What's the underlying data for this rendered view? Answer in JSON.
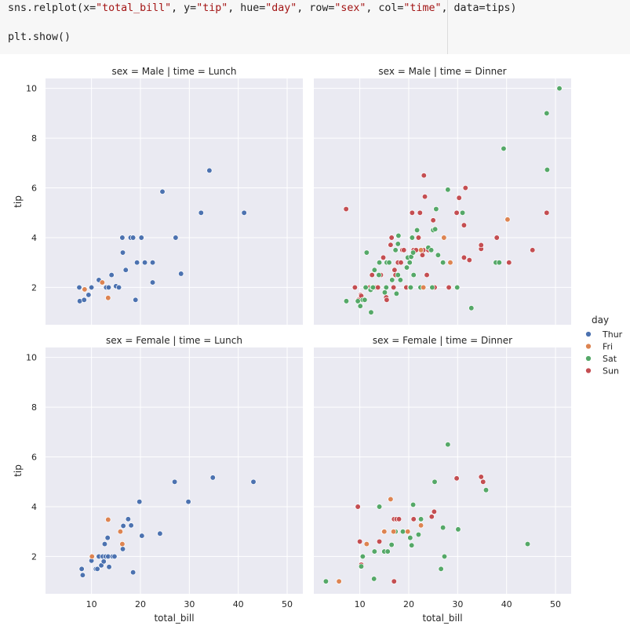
{
  "code": {
    "line1_prefix": "sns.relplot(x=",
    "line1_x": "\"total_bill\"",
    "line1_sep1": ", y=",
    "line1_y": "\"tip\"",
    "line1_sep2": ", hue=",
    "line1_hue": "\"day\"",
    "line1_sep3": ", row=",
    "line1_row": "\"sex\"",
    "line1_sep4": ", col=",
    "line1_col": "\"time\"",
    "line1_suffix": ", data=tips)",
    "line2": "plt.show()"
  },
  "colors": {
    "Thur": "#4c72b0",
    "Fri": "#dd8452",
    "Sat": "#55a868",
    "Sun": "#c44e52",
    "panel_bg": "#eaeaf2",
    "grid": "#ffffff"
  },
  "chart_data": {
    "type": "scatter",
    "grid": true,
    "xlabel": "total_bill",
    "ylabel": "tip",
    "xlim": [
      0.6,
      53.2
    ],
    "ylim": [
      0.5,
      10.4
    ],
    "xticks": [
      10,
      20,
      30,
      40,
      50
    ],
    "yticks": [
      2,
      4,
      6,
      8,
      10
    ],
    "legend": {
      "title": "day",
      "entries": [
        "Thur",
        "Fri",
        "Sat",
        "Sun"
      ],
      "placement": "right"
    },
    "panels": [
      {
        "title": "sex = Male | time = Lunch",
        "points": [
          [
            7.5,
            2.0,
            "Thur"
          ],
          [
            7.6,
            1.45,
            "Thur"
          ],
          [
            8.5,
            1.5,
            "Thur"
          ],
          [
            9.4,
            1.7,
            "Thur"
          ],
          [
            10.0,
            2.0,
            "Thur"
          ],
          [
            11.5,
            2.3,
            "Thur"
          ],
          [
            13.0,
            2.0,
            "Thur"
          ],
          [
            13.5,
            2.0,
            "Thur"
          ],
          [
            14.1,
            2.5,
            "Thur"
          ],
          [
            15.0,
            2.05,
            "Thur"
          ],
          [
            15.6,
            2.0,
            "Thur"
          ],
          [
            16.3,
            4.0,
            "Thur"
          ],
          [
            16.4,
            3.4,
            "Thur"
          ],
          [
            17.0,
            2.7,
            "Thur"
          ],
          [
            18.0,
            4.0,
            "Thur"
          ],
          [
            18.5,
            4.0,
            "Thur"
          ],
          [
            19.0,
            1.5,
            "Thur"
          ],
          [
            19.3,
            3.0,
            "Thur"
          ],
          [
            20.2,
            4.0,
            "Thur"
          ],
          [
            20.9,
            3.0,
            "Thur"
          ],
          [
            22.5,
            3.0,
            "Thur"
          ],
          [
            22.5,
            2.2,
            "Thur"
          ],
          [
            24.5,
            5.85,
            "Thur"
          ],
          [
            27.2,
            4.0,
            "Thur"
          ],
          [
            28.3,
            2.55,
            "Thur"
          ],
          [
            32.4,
            5.0,
            "Thur"
          ],
          [
            34.1,
            6.7,
            "Thur"
          ],
          [
            41.2,
            5.0,
            "Thur"
          ],
          [
            8.6,
            1.92,
            "Fri"
          ],
          [
            12.2,
            2.2,
            "Fri"
          ],
          [
            13.4,
            1.58,
            "Fri"
          ]
        ]
      },
      {
        "title": "sex = Male | time = Dinner",
        "points": [
          [
            7.2,
            5.15,
            "Sun"
          ],
          [
            9.0,
            2.0,
            "Sun"
          ],
          [
            9.7,
            1.5,
            "Sun"
          ],
          [
            10.2,
            1.7,
            "Sun"
          ],
          [
            10.3,
            1.66,
            "Sun"
          ],
          [
            12.0,
            2.0,
            "Sun"
          ],
          [
            12.5,
            2.5,
            "Sun"
          ],
          [
            13.3,
            2.0,
            "Sun"
          ],
          [
            13.7,
            2.0,
            "Sun"
          ],
          [
            14.0,
            3.0,
            "Sun"
          ],
          [
            14.3,
            2.5,
            "Sun"
          ],
          [
            14.8,
            3.2,
            "Sun"
          ],
          [
            15.4,
            1.6,
            "Sun"
          ],
          [
            15.5,
            1.5,
            "Sun"
          ],
          [
            16.3,
            3.71,
            "Sun"
          ],
          [
            16.5,
            4.0,
            "Sun"
          ],
          [
            16.9,
            2.0,
            "Sun"
          ],
          [
            17.1,
            2.7,
            "Sun"
          ],
          [
            17.3,
            2.5,
            "Sun"
          ],
          [
            17.8,
            3.0,
            "Sun"
          ],
          [
            18.4,
            3.0,
            "Sun"
          ],
          [
            18.7,
            3.5,
            "Sun"
          ],
          [
            19.0,
            3.5,
            "Sun"
          ],
          [
            19.5,
            2.0,
            "Sun"
          ],
          [
            20.3,
            2.0,
            "Sun"
          ],
          [
            20.7,
            5.0,
            "Sun"
          ],
          [
            21.0,
            3.5,
            "Sun"
          ],
          [
            21.5,
            3.5,
            "Sun"
          ],
          [
            22.0,
            4.0,
            "Sun"
          ],
          [
            22.3,
            5.0,
            "Sun"
          ],
          [
            22.8,
            3.3,
            "Sun"
          ],
          [
            23.0,
            3.5,
            "Sun"
          ],
          [
            23.1,
            6.5,
            "Sun"
          ],
          [
            23.3,
            5.65,
            "Sun"
          ],
          [
            23.7,
            2.5,
            "Sun"
          ],
          [
            24.0,
            3.5,
            "Sun"
          ],
          [
            25.0,
            4.7,
            "Sun"
          ],
          [
            25.3,
            2.0,
            "Sun"
          ],
          [
            26.9,
            3.0,
            "Sun"
          ],
          [
            28.2,
            2.0,
            "Sun"
          ],
          [
            29.8,
            5.0,
            "Sun"
          ],
          [
            30.3,
            5.6,
            "Sun"
          ],
          [
            31.3,
            4.5,
            "Sun"
          ],
          [
            31.3,
            3.2,
            "Sun"
          ],
          [
            31.6,
            6.0,
            "Sun"
          ],
          [
            32.4,
            3.1,
            "Sun"
          ],
          [
            34.8,
            3.55,
            "Sun"
          ],
          [
            34.8,
            3.7,
            "Sun"
          ],
          [
            38.0,
            4.0,
            "Sun"
          ],
          [
            40.5,
            3.0,
            "Sun"
          ],
          [
            45.3,
            3.5,
            "Sun"
          ],
          [
            48.2,
            5.0,
            "Sun"
          ],
          [
            7.25,
            1.45,
            "Sat"
          ],
          [
            9.6,
            1.45,
            "Sat"
          ],
          [
            10.1,
            1.25,
            "Sat"
          ],
          [
            10.6,
            1.5,
            "Sat"
          ],
          [
            11.0,
            1.5,
            "Sat"
          ],
          [
            11.2,
            2.0,
            "Sat"
          ],
          [
            11.4,
            3.4,
            "Sat"
          ],
          [
            12.2,
            1.9,
            "Sat"
          ],
          [
            12.3,
            1.0,
            "Sat"
          ],
          [
            12.5,
            2.0,
            "Sat"
          ],
          [
            12.7,
            2.0,
            "Sat"
          ],
          [
            13.0,
            2.7,
            "Sat"
          ],
          [
            13.9,
            2.5,
            "Sat"
          ],
          [
            14.0,
            3.0,
            "Sat"
          ],
          [
            15.1,
            1.8,
            "Sat"
          ],
          [
            15.4,
            2.0,
            "Sat"
          ],
          [
            15.5,
            3.0,
            "Sat"
          ],
          [
            16.0,
            3.0,
            "Sat"
          ],
          [
            16.6,
            2.3,
            "Sat"
          ],
          [
            17.3,
            3.5,
            "Sat"
          ],
          [
            17.5,
            1.75,
            "Sat"
          ],
          [
            17.8,
            2.5,
            "Sat"
          ],
          [
            17.8,
            3.75,
            "Sat"
          ],
          [
            17.9,
            4.08,
            "Sat"
          ],
          [
            18.3,
            2.3,
            "Sat"
          ],
          [
            19.6,
            2.8,
            "Sat"
          ],
          [
            19.8,
            3.2,
            "Sat"
          ],
          [
            20.2,
            3.0,
            "Sat"
          ],
          [
            20.4,
            2.0,
            "Sat"
          ],
          [
            20.5,
            3.23,
            "Sat"
          ],
          [
            20.7,
            4.0,
            "Sat"
          ],
          [
            20.9,
            3.4,
            "Sat"
          ],
          [
            21.0,
            2.5,
            "Sat"
          ],
          [
            21.7,
            4.3,
            "Sat"
          ],
          [
            22.4,
            2.0,
            "Sat"
          ],
          [
            24.0,
            3.6,
            "Sat"
          ],
          [
            24.6,
            3.5,
            "Sat"
          ],
          [
            24.8,
            2.0,
            "Sat"
          ],
          [
            25.0,
            4.3,
            "Sat"
          ],
          [
            25.4,
            4.34,
            "Sat"
          ],
          [
            25.6,
            5.15,
            "Sat"
          ],
          [
            26.0,
            3.3,
            "Sat"
          ],
          [
            27.0,
            3.0,
            "Sat"
          ],
          [
            28.0,
            5.93,
            "Sat"
          ],
          [
            29.9,
            2.0,
            "Sat"
          ],
          [
            31.0,
            5.0,
            "Sat"
          ],
          [
            32.8,
            1.17,
            "Sat"
          ],
          [
            37.8,
            3.0,
            "Sat"
          ],
          [
            38.5,
            3.0,
            "Sat"
          ],
          [
            39.4,
            7.58,
            "Sat"
          ],
          [
            48.2,
            9.0,
            "Sat"
          ],
          [
            48.3,
            6.73,
            "Sat"
          ],
          [
            50.8,
            10.0,
            "Sat"
          ],
          [
            22.5,
            3.5,
            "Fri"
          ],
          [
            23.0,
            2.0,
            "Fri"
          ],
          [
            27.2,
            4.0,
            "Fri"
          ],
          [
            28.5,
            3.0,
            "Fri"
          ],
          [
            40.2,
            4.73,
            "Fri"
          ]
        ]
      },
      {
        "title": "sex = Female | time = Lunch",
        "points": [
          [
            8.0,
            1.5,
            "Thur"
          ],
          [
            8.2,
            1.25,
            "Thur"
          ],
          [
            10.0,
            1.83,
            "Thur"
          ],
          [
            10.9,
            1.5,
            "Thur"
          ],
          [
            11.2,
            1.5,
            "Thur"
          ],
          [
            11.5,
            2.0,
            "Thur"
          ],
          [
            12.0,
            1.64,
            "Thur"
          ],
          [
            12.3,
            2.0,
            "Thur"
          ],
          [
            12.5,
            1.8,
            "Thur"
          ],
          [
            12.7,
            2.5,
            "Thur"
          ],
          [
            12.9,
            2.0,
            "Thur"
          ],
          [
            13.3,
            2.75,
            "Thur"
          ],
          [
            13.4,
            2.0,
            "Thur"
          ],
          [
            13.6,
            1.58,
            "Thur"
          ],
          [
            14.3,
            2.0,
            "Thur"
          ],
          [
            14.7,
            2.0,
            "Thur"
          ],
          [
            16.4,
            2.3,
            "Thur"
          ],
          [
            16.5,
            3.23,
            "Thur"
          ],
          [
            17.5,
            3.5,
            "Thur"
          ],
          [
            18.1,
            3.25,
            "Thur"
          ],
          [
            18.5,
            1.36,
            "Thur"
          ],
          [
            19.8,
            4.2,
            "Thur"
          ],
          [
            20.3,
            2.83,
            "Thur"
          ],
          [
            24.0,
            2.92,
            "Thur"
          ],
          [
            27.0,
            5.0,
            "Thur"
          ],
          [
            29.8,
            4.2,
            "Thur"
          ],
          [
            34.8,
            5.17,
            "Thur"
          ],
          [
            43.1,
            5.0,
            "Thur"
          ],
          [
            10.1,
            2.0,
            "Fri"
          ],
          [
            13.4,
            3.48,
            "Fri"
          ],
          [
            15.9,
            3.0,
            "Fri"
          ],
          [
            16.3,
            2.5,
            "Fri"
          ]
        ]
      },
      {
        "title": "sex = Female | time = Dinner",
        "points": [
          [
            9.6,
            4.0,
            "Sun"
          ],
          [
            10.0,
            2.6,
            "Sun"
          ],
          [
            10.3,
            1.67,
            "Sun"
          ],
          [
            14.0,
            2.6,
            "Sun"
          ],
          [
            14.9,
            3.0,
            "Sun"
          ],
          [
            17.0,
            3.5,
            "Sun"
          ],
          [
            17.5,
            3.5,
            "Sun"
          ],
          [
            18.0,
            3.5,
            "Sun"
          ],
          [
            17.0,
            1.0,
            "Sun"
          ],
          [
            21.0,
            3.5,
            "Sun"
          ],
          [
            24.7,
            3.6,
            "Sun"
          ],
          [
            25.2,
            3.8,
            "Sun"
          ],
          [
            29.8,
            5.14,
            "Sun"
          ],
          [
            34.8,
            5.2,
            "Sun"
          ],
          [
            35.2,
            5.0,
            "Sun"
          ],
          [
            3.07,
            1.0,
            "Sat"
          ],
          [
            5.75,
            1.0,
            "Sat"
          ],
          [
            10.3,
            1.6,
            "Sat"
          ],
          [
            10.6,
            2.0,
            "Sat"
          ],
          [
            12.9,
            1.1,
            "Sat"
          ],
          [
            13.0,
            2.2,
            "Sat"
          ],
          [
            14.0,
            4.0,
            "Sat"
          ],
          [
            15.0,
            2.2,
            "Sat"
          ],
          [
            15.7,
            2.2,
            "Sat"
          ],
          [
            16.5,
            2.47,
            "Sat"
          ],
          [
            17.0,
            3.0,
            "Sat"
          ],
          [
            17.3,
            3.0,
            "Sat"
          ],
          [
            18.8,
            3.0,
            "Sat"
          ],
          [
            20.3,
            2.75,
            "Sat"
          ],
          [
            20.6,
            2.45,
            "Sat"
          ],
          [
            20.9,
            4.08,
            "Sat"
          ],
          [
            22.0,
            2.88,
            "Sat"
          ],
          [
            22.5,
            3.5,
            "Sat"
          ],
          [
            25.3,
            5.0,
            "Sat"
          ],
          [
            26.6,
            1.5,
            "Sat"
          ],
          [
            27.0,
            3.16,
            "Sat"
          ],
          [
            27.3,
            2.0,
            "Sat"
          ],
          [
            28.0,
            6.5,
            "Sat"
          ],
          [
            30.1,
            3.09,
            "Sat"
          ],
          [
            35.8,
            4.67,
            "Sat"
          ],
          [
            44.3,
            2.5,
            "Sat"
          ],
          [
            5.75,
            1.0,
            "Fri"
          ],
          [
            11.4,
            2.5,
            "Fri"
          ],
          [
            15.0,
            3.0,
            "Fri"
          ],
          [
            16.3,
            4.3,
            "Fri"
          ],
          [
            16.9,
            3.0,
            "Fri"
          ],
          [
            19.8,
            3.0,
            "Fri"
          ],
          [
            22.5,
            3.25,
            "Fri"
          ]
        ]
      }
    ]
  }
}
